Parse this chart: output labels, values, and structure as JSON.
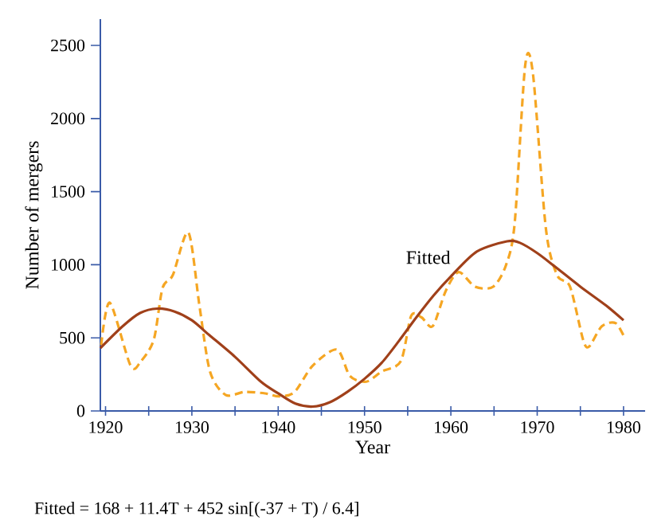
{
  "chart_data": {
    "type": "line",
    "xlabel": "Year",
    "ylabel": "Number of mergers",
    "xlim": [
      1919.4,
      1982.5
    ],
    "ylim": [
      0,
      2680
    ],
    "xticks": [
      1920,
      {
        "value": 1925,
        "label": null
      },
      1930,
      {
        "value": 1935,
        "label": null
      },
      1940,
      {
        "value": 1945,
        "label": null
      },
      1950,
      {
        "value": 1955,
        "label": null
      },
      1960,
      {
        "value": 1965,
        "label": null
      },
      1970,
      {
        "value": 1975,
        "label": null
      },
      1980
    ],
    "yticks": [
      0,
      500,
      1000,
      1500,
      2000,
      2500
    ],
    "grid": false,
    "legend": false,
    "series": [
      {
        "color": "#f5a623",
        "line_style": "dashed",
        "x": [
          1919.5,
          1920.5,
          1922.9,
          1924.1,
          1925.6,
          1926.6,
          1927.8,
          1929.6,
          1930.9,
          1932.1,
          1933.9,
          1936.1,
          1938.5,
          1940.1,
          1941.9,
          1944.0,
          1946.8,
          1948.3,
          1950.2,
          1952.0,
          1954.2,
          1955.4,
          1956.6,
          1957.9,
          1959.4,
          1960.9,
          1962.8,
          1964.9,
          1966.4,
          1967.4,
          1968.6,
          1969.5,
          1971.0,
          1972.3,
          1973.8,
          1975.3,
          1976.0,
          1977.5,
          1979.1,
          1980.2
        ],
        "values": [
          450,
          740,
          310,
          340,
          490,
          840,
          930,
          1220,
          710,
          270,
          110,
          130,
          120,
          100,
          130,
          310,
          420,
          240,
          200,
          270,
          340,
          650,
          640,
          580,
          820,
          950,
          850,
          850,
          1000,
          1290,
          2360,
          2310,
          1250,
          930,
          850,
          490,
          440,
          580,
          600,
          490
        ]
      },
      {
        "name": "Fitted",
        "color": "#a0401a",
        "line_style": "solid",
        "x": [
          1919.4,
          1922,
          1924,
          1926,
          1928,
          1930,
          1932,
          1935,
          1938,
          1940,
          1942,
          1944,
          1946,
          1948,
          1950,
          1952,
          1954,
          1956,
          1958,
          1960,
          1963,
          1966.5,
          1968,
          1970,
          1972,
          1975,
          1978,
          1980
        ],
        "values": [
          430,
          580,
          670,
          700,
          680,
          620,
          520,
          370,
          200,
          120,
          50,
          30,
          60,
          130,
          220,
          330,
          480,
          640,
          790,
          920,
          1090,
          1160,
          1150,
          1080,
          990,
          850,
          720,
          620
        ]
      }
    ],
    "annotations": [
      "Fitted = 168 + 11.4T + 452 sin[(-37 + T) / 6.4]"
    ]
  }
}
